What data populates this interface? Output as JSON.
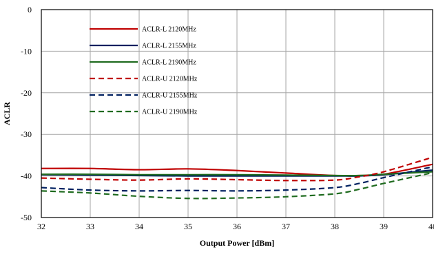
{
  "chart_data": {
    "type": "line",
    "xlabel": "Output Power [dBm]",
    "ylabel": "ACLR",
    "xlim": [
      32,
      40
    ],
    "ylim": [
      -50,
      0
    ],
    "xticks": [
      "32",
      "33",
      "34",
      "35",
      "36",
      "37",
      "38",
      "39",
      "40"
    ],
    "yticks": [
      "0",
      "-10",
      "-20",
      "-30",
      "-40",
      "-50"
    ],
    "grid": true,
    "legend_position": "top-left",
    "series": [
      {
        "name": "ACLR-L 2120MHz",
        "color": "#c00000",
        "dash": "solid",
        "x": [
          32,
          33,
          34,
          35,
          36,
          37,
          38,
          38.5,
          39,
          40
        ],
        "y": [
          -38.2,
          -38.2,
          -38.5,
          -38.3,
          -38.7,
          -39.3,
          -39.9,
          -39.9,
          -39.6,
          -37.2
        ]
      },
      {
        "name": "ACLR-L 2155MHz",
        "color": "#002060",
        "dash": "solid",
        "x": [
          32,
          33,
          34,
          35,
          36,
          37,
          38,
          38.5,
          39,
          40
        ],
        "y": [
          -39.7,
          -39.8,
          -39.9,
          -40.0,
          -40.0,
          -40.0,
          -40.0,
          -40.0,
          -39.7,
          -38.6
        ]
      },
      {
        "name": "ACLR-L 2190MHz",
        "color": "#1f6b1f",
        "dash": "solid",
        "x": [
          32,
          33,
          34,
          35,
          36,
          37,
          38,
          38.5,
          39,
          40
        ],
        "y": [
          -39.6,
          -39.6,
          -39.7,
          -39.7,
          -39.7,
          -39.8,
          -39.9,
          -39.9,
          -39.6,
          -39.0
        ]
      },
      {
        "name": "ACLR-U 2120MHz",
        "color": "#c00000",
        "dash": "dashed",
        "x": [
          32,
          33,
          34,
          35,
          36,
          37,
          38,
          38.5,
          39,
          40
        ],
        "y": [
          -40.5,
          -40.8,
          -41.0,
          -40.7,
          -40.9,
          -41.1,
          -41.0,
          -40.2,
          -39.0,
          -35.5
        ]
      },
      {
        "name": "ACLR-U 2155MHz",
        "color": "#002060",
        "dash": "dashed",
        "x": [
          32,
          33,
          34,
          35,
          36,
          37,
          38,
          38.5,
          39,
          40
        ],
        "y": [
          -42.8,
          -43.4,
          -43.6,
          -43.5,
          -43.6,
          -43.4,
          -42.8,
          -41.8,
          -40.4,
          -37.8
        ]
      },
      {
        "name": "ACLR-U 2190MHz",
        "color": "#1f6b1f",
        "dash": "dashed",
        "x": [
          32,
          33,
          34,
          35,
          36,
          37,
          38,
          38.5,
          39,
          40
        ],
        "y": [
          -43.6,
          -44.1,
          -44.9,
          -45.4,
          -45.3,
          -45.0,
          -44.3,
          -43.2,
          -41.8,
          -39.2
        ]
      }
    ]
  }
}
